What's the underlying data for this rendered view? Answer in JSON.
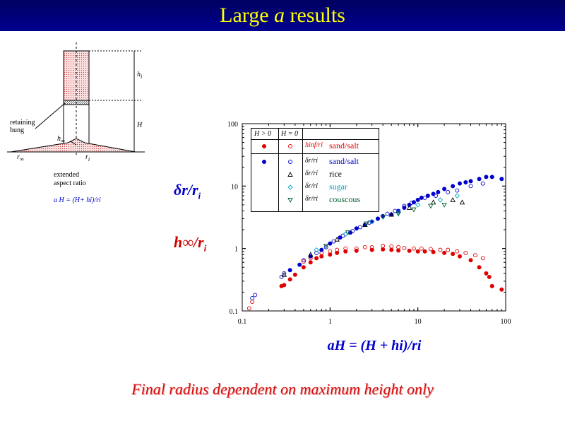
{
  "title": {
    "prefix": "Large ",
    "symbol": "a",
    "suffix": " results"
  },
  "footer": "Final radius dependent on maximum height only",
  "diagram": {
    "h_i": "h",
    "h_i_sub": "i",
    "H": "H",
    "retaining_line1": "retaining",
    "retaining_line2": "bung",
    "h_inf": "h",
    "h_inf_sub": "∞",
    "r_inf": "r",
    "r_inf_sub": "∞",
    "r_i": "r",
    "r_i_sub": "i",
    "extended_line1": "extended",
    "extended_line2": "aspect ratio",
    "formula": "a H = (H+ hi)/ri"
  },
  "ylabel_top": {
    "main": "δr/",
    "r": "r",
    "sub": "i"
  },
  "ylabel_bottom": {
    "main": "h∞/",
    "r": "r",
    "sub": "i"
  },
  "xlabel": "aH = (H + hi)/ri",
  "legend": {
    "col_h_pos": "H > 0",
    "col_h_zero": "H = 0",
    "rows": [
      {
        "sym": "hinf/ri",
        "label": "sand/salt",
        "color": "#e00000"
      },
      {
        "sym": "δr/ri",
        "label": "sand/salt",
        "color": "#0000cc"
      },
      {
        "sym": "δr/ri",
        "label": "rice",
        "color": "#000000"
      },
      {
        "sym": "δr/ri",
        "label": "sugar",
        "color": "#00a0c0"
      },
      {
        "sym": "δr/ri",
        "label": "couscous",
        "color": "#006030"
      }
    ]
  },
  "chart_data": {
    "type": "scatter",
    "xlog": true,
    "ylog": true,
    "xlim": [
      0.1,
      100
    ],
    "ylim": [
      0.1,
      100
    ],
    "xticks": [
      "0.1",
      "1",
      "10",
      "100"
    ],
    "yticks": [
      "0.1",
      "1",
      "10",
      "100"
    ],
    "series": [
      {
        "name": "h∞/ri sand/salt (H>0)",
        "color": "#e00000",
        "marker": "filled-circle",
        "points": [
          [
            0.28,
            0.25
          ],
          [
            0.3,
            0.26
          ],
          [
            0.35,
            0.32
          ],
          [
            0.4,
            0.38
          ],
          [
            0.5,
            0.5
          ],
          [
            0.6,
            0.6
          ],
          [
            0.7,
            0.7
          ],
          [
            0.8,
            0.75
          ],
          [
            1,
            0.8
          ],
          [
            1.2,
            0.85
          ],
          [
            1.5,
            0.9
          ],
          [
            2,
            0.92
          ],
          [
            3,
            0.95
          ],
          [
            4,
            0.97
          ],
          [
            5,
            0.95
          ],
          [
            6,
            0.93
          ],
          [
            8,
            0.92
          ],
          [
            10,
            0.9
          ],
          [
            12,
            0.9
          ],
          [
            15,
            0.88
          ],
          [
            20,
            0.85
          ],
          [
            25,
            0.82
          ],
          [
            30,
            0.75
          ],
          [
            40,
            0.65
          ],
          [
            50,
            0.5
          ],
          [
            60,
            0.4
          ],
          [
            65,
            0.35
          ],
          [
            70,
            0.25
          ],
          [
            90,
            0.22
          ]
        ]
      },
      {
        "name": "h∞/ri sand/salt (H=0)",
        "color": "#e00000",
        "marker": "open-circle",
        "points": [
          [
            0.12,
            0.11
          ],
          [
            0.13,
            0.14
          ],
          [
            0.5,
            0.62
          ],
          [
            0.6,
            0.7
          ],
          [
            0.8,
            0.85
          ],
          [
            1,
            0.9
          ],
          [
            1.2,
            0.95
          ],
          [
            1.5,
            1.0
          ],
          [
            2,
            1.0
          ],
          [
            2.5,
            1.05
          ],
          [
            3,
            1.05
          ],
          [
            4,
            1.1
          ],
          [
            5,
            1.08
          ],
          [
            6,
            1.05
          ],
          [
            7,
            1.02
          ],
          [
            9,
            1.0
          ],
          [
            11,
            1.0
          ],
          [
            14,
            0.98
          ],
          [
            18,
            0.95
          ],
          [
            22,
            0.95
          ],
          [
            28,
            0.9
          ],
          [
            35,
            0.85
          ],
          [
            45,
            0.78
          ],
          [
            55,
            0.7
          ]
        ]
      },
      {
        "name": "δr/ri sand/salt (H>0)",
        "color": "#0000cc",
        "marker": "filled-circle",
        "points": [
          [
            0.35,
            0.45
          ],
          [
            0.45,
            0.55
          ],
          [
            0.6,
            0.75
          ],
          [
            0.8,
            0.95
          ],
          [
            1,
            1.2
          ],
          [
            1.3,
            1.5
          ],
          [
            1.7,
            1.8
          ],
          [
            2,
            2.1
          ],
          [
            2.5,
            2.4
          ],
          [
            3,
            2.7
          ],
          [
            3.5,
            3.0
          ],
          [
            4,
            3.3
          ],
          [
            5,
            3.5
          ],
          [
            6,
            4.0
          ],
          [
            7,
            4.5
          ],
          [
            8,
            5.0
          ],
          [
            9,
            5.5
          ],
          [
            10,
            6.0
          ],
          [
            11,
            6.5
          ],
          [
            13,
            7.0
          ],
          [
            15,
            7.5
          ],
          [
            17,
            8.0
          ],
          [
            20,
            9.0
          ],
          [
            25,
            10.0
          ],
          [
            30,
            11.0
          ],
          [
            35,
            11.5
          ],
          [
            40,
            12.0
          ],
          [
            50,
            13.0
          ],
          [
            60,
            14.0
          ],
          [
            70,
            14.0
          ],
          [
            90,
            13.0
          ]
        ]
      },
      {
        "name": "δr/ri sand/salt (H=0)",
        "color": "#0000cc",
        "marker": "open-circle",
        "points": [
          [
            0.13,
            0.16
          ],
          [
            0.14,
            0.18
          ],
          [
            0.28,
            0.35
          ],
          [
            0.3,
            0.4
          ],
          [
            0.5,
            0.65
          ],
          [
            0.7,
            0.85
          ],
          [
            0.9,
            1.05
          ],
          [
            1.1,
            1.3
          ],
          [
            1.4,
            1.6
          ],
          [
            1.8,
            1.9
          ],
          [
            2.2,
            2.2
          ],
          [
            2.8,
            2.6
          ],
          [
            3.5,
            3.0
          ],
          [
            4.5,
            3.6
          ],
          [
            5.5,
            4.0
          ],
          [
            7,
            4.8
          ],
          [
            8.5,
            5.4
          ],
          [
            12,
            6.5
          ],
          [
            16,
            7.0
          ],
          [
            22,
            8.0
          ],
          [
            28,
            8.5
          ],
          [
            40,
            10.0
          ],
          [
            55,
            11.0
          ]
        ]
      },
      {
        "name": "δr/ri rice",
        "color": "#000000",
        "marker": "open-triangle",
        "points": [
          [
            0.3,
            0.38
          ],
          [
            0.6,
            0.8
          ],
          [
            1.2,
            1.4
          ],
          [
            2.5,
            2.4
          ],
          [
            5,
            3.5
          ],
          [
            8,
            4.5
          ],
          [
            15,
            5.5
          ],
          [
            25,
            6.0
          ],
          [
            32,
            5.5
          ]
        ]
      },
      {
        "name": "δr/ri sugar",
        "color": "#00a0c0",
        "marker": "open-diamond",
        "points": [
          [
            0.7,
            0.95
          ],
          [
            1.5,
            1.7
          ],
          [
            3,
            2.7
          ],
          [
            6,
            3.8
          ],
          [
            10,
            5.0
          ],
          [
            18,
            6.0
          ],
          [
            28,
            7.0
          ]
        ]
      },
      {
        "name": "δr/ri couscous",
        "color": "#006030",
        "marker": "open-triangle-down",
        "points": [
          [
            0.9,
            1.1
          ],
          [
            1.6,
            1.8
          ],
          [
            2.6,
            2.5
          ],
          [
            4,
            3.2
          ],
          [
            6,
            3.6
          ],
          [
            9,
            4.2
          ],
          [
            14,
            4.8
          ],
          [
            20,
            5.0
          ]
        ]
      }
    ]
  }
}
